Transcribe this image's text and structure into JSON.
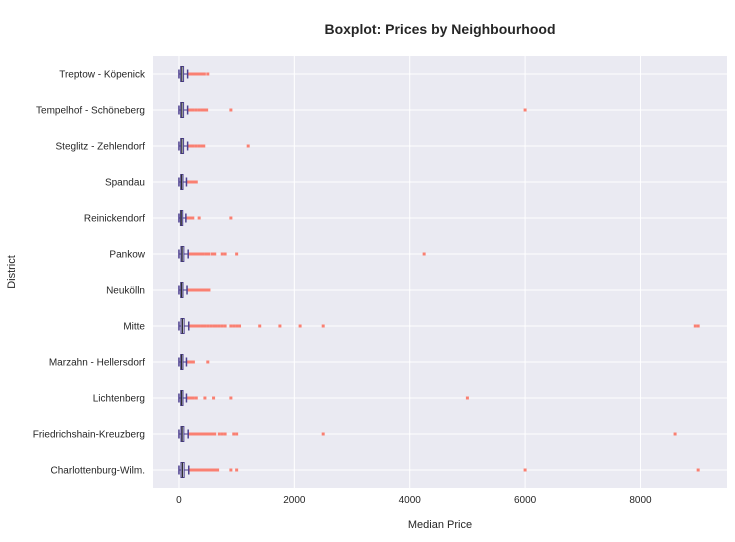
{
  "chart_data": {
    "type": "boxplot",
    "orientation": "horizontal",
    "title": "Boxplot: Prices by Neighbourhood",
    "xlabel": "Median Price",
    "ylabel": "District",
    "xlim": [
      -450,
      9500
    ],
    "xticks": [
      0,
      2000,
      4000,
      6000,
      8000
    ],
    "grid": true,
    "colors": {
      "background": "#eaeaf2",
      "grid": "#ffffff",
      "box_edge": "#4c3f8f",
      "box_fill": "#eaeaf2",
      "median": "#2f2f2f",
      "outlier": "#fa8072"
    },
    "categories": [
      "Treptow - Köpenick",
      "Tempelhof - Schöneberg",
      "Steglitz - Zehlendorf",
      "Spandau",
      "Reinickendorf",
      "Pankow",
      "Neukölln",
      "Mitte",
      "Marzahn - Hellersdorf",
      "Lichtenberg",
      "Friedrichshain-Kreuzberg",
      "Charlottenburg-Wilm."
    ],
    "boxes": [
      {
        "category": "Treptow - Köpenick",
        "whisker_low": 0,
        "q1": 30,
        "median": 50,
        "q3": 80,
        "whisker_high": 150,
        "outliers": [
          170,
          200,
          240,
          280,
          320,
          360,
          400,
          440,
          500
        ]
      },
      {
        "category": "Tempelhof - Schöneberg",
        "whisker_low": 0,
        "q1": 30,
        "median": 50,
        "q3": 80,
        "whisker_high": 150,
        "outliers": [
          170,
          200,
          250,
          300,
          350,
          400,
          450,
          480,
          900,
          6000
        ]
      },
      {
        "category": "Steglitz - Zehlendorf",
        "whisker_low": 0,
        "q1": 30,
        "median": 50,
        "q3": 80,
        "whisker_high": 150,
        "outliers": [
          170,
          200,
          250,
          300,
          350,
          400,
          430,
          1200
        ]
      },
      {
        "category": "Spandau",
        "whisker_low": 0,
        "q1": 30,
        "median": 45,
        "q3": 70,
        "whisker_high": 130,
        "outliers": [
          150,
          180,
          220,
          260,
          300
        ]
      },
      {
        "category": "Reinickendorf",
        "whisker_low": 0,
        "q1": 25,
        "median": 40,
        "q3": 65,
        "whisker_high": 120,
        "outliers": [
          140,
          170,
          200,
          240,
          350,
          900
        ]
      },
      {
        "category": "Pankow",
        "whisker_low": 0,
        "q1": 35,
        "median": 55,
        "q3": 85,
        "whisker_high": 160,
        "outliers": [
          180,
          220,
          260,
          300,
          340,
          380,
          420,
          470,
          520,
          580,
          620,
          750,
          800,
          1000,
          4250
        ]
      },
      {
        "category": "Neukölln",
        "whisker_low": 0,
        "q1": 30,
        "median": 45,
        "q3": 70,
        "whisker_high": 140,
        "outliers": [
          160,
          200,
          240,
          280,
          320,
          360,
          400,
          440,
          480,
          520
        ]
      },
      {
        "category": "Mitte",
        "whisker_low": 0,
        "q1": 35,
        "median": 60,
        "q3": 90,
        "whisker_high": 170,
        "outliers": [
          190,
          230,
          270,
          310,
          350,
          400,
          450,
          500,
          550,
          600,
          650,
          700,
          750,
          800,
          900,
          950,
          1000,
          1050,
          1400,
          1750,
          2100,
          2500,
          8950,
          9000
        ]
      },
      {
        "category": "Marzahn - Hellersdorf",
        "whisker_low": 0,
        "q1": 30,
        "median": 45,
        "q3": 70,
        "whisker_high": 130,
        "outliers": [
          150,
          180,
          210,
          250,
          500
        ]
      },
      {
        "category": "Lichtenberg",
        "whisker_low": 0,
        "q1": 30,
        "median": 45,
        "q3": 70,
        "whisker_high": 130,
        "outliers": [
          150,
          180,
          210,
          250,
          300,
          450,
          600,
          900,
          5000
        ]
      },
      {
        "category": "Friedrichshain-Kreuzberg",
        "whisker_low": 0,
        "q1": 35,
        "median": 55,
        "q3": 85,
        "whisker_high": 160,
        "outliers": [
          180,
          220,
          260,
          300,
          340,
          380,
          420,
          460,
          500,
          540,
          580,
          620,
          700,
          750,
          800,
          950,
          1000,
          2500,
          8600
        ]
      },
      {
        "category": "Charlottenburg-Wilm.",
        "whisker_low": 0,
        "q1": 35,
        "median": 60,
        "q3": 90,
        "whisker_high": 170,
        "outliers": [
          190,
          230,
          270,
          310,
          350,
          390,
          430,
          470,
          510,
          550,
          590,
          630,
          670,
          900,
          1000,
          6000,
          9000
        ]
      }
    ]
  }
}
